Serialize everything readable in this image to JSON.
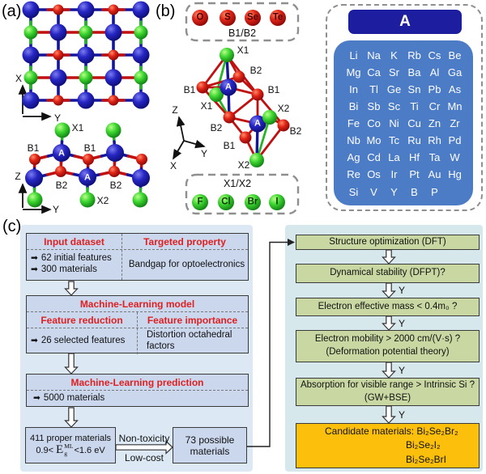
{
  "panels": {
    "a": "(a)",
    "b": "(b)",
    "c": "(c)"
  },
  "axes": {
    "x": "X",
    "y": "Y",
    "z": "Z"
  },
  "site_labels": {
    "a": "A",
    "b1": "B1",
    "b2": "B2",
    "x1": "X1",
    "x2": "X2"
  },
  "panel_b": {
    "b_site_box": {
      "caption": "B1/B2",
      "elements": [
        "O",
        "S",
        "Se",
        "Te"
      ]
    },
    "x_site_box": {
      "caption": "X1/X2",
      "elements": [
        "F",
        "Cl",
        "Br",
        "I"
      ]
    }
  },
  "a_site_box": {
    "header": "A",
    "rows": [
      [
        "Li",
        "Na",
        "K",
        "Rb",
        "Cs",
        "Be"
      ],
      [
        "Mg",
        "Ca",
        "Sr",
        "Ba",
        "Al",
        "Ga"
      ],
      [
        "In",
        "Tl",
        "Ge",
        "Sn",
        "Pb",
        "As"
      ],
      [
        "Bi",
        "Sb",
        "Sc",
        "Ti",
        "Cr",
        "Mn"
      ],
      [
        "Fe",
        "Co",
        "Ni",
        "Cu",
        "Zn",
        "Zr"
      ],
      [
        "Nb",
        "Mo",
        "Tc",
        "Ru",
        "Rh",
        "Pd"
      ],
      [
        "Ag",
        "Cd",
        "La",
        "Hf",
        "Ta",
        "W"
      ],
      [
        "Re",
        "Os",
        "Ir",
        "Pt",
        "Au",
        "Hg"
      ],
      [
        "Si",
        "V",
        "Y",
        "B",
        "P",
        ""
      ]
    ]
  },
  "flowchart": {
    "bullet_icon": "➡",
    "input_box": {
      "header_left": "Input dataset",
      "header_right": "Targeted property",
      "items": [
        "62 initial features",
        "300 materials"
      ],
      "body_right": "Bandgap for optoelectronics"
    },
    "model_box": {
      "title": "Machine-Learning model",
      "sub_left": "Feature reduction",
      "sub_right": "Feature importance",
      "item": "26 selected features",
      "body_right": "Distortion octahedral factors"
    },
    "prediction_box": {
      "title": "Machine-Learning prediction",
      "item": "5000 materials"
    },
    "proper_box": {
      "line1": "411 proper materials",
      "formula": {
        "prefix": "0.9<",
        "symbol": "E",
        "sup": "ML",
        "sub": "g",
        "suffix": "<1.6 eV"
      }
    },
    "transfer": {
      "top": "Non-toxicity",
      "bottom": "Low-cost"
    },
    "possible_box": {
      "text": "73 possible materials"
    },
    "yes_label": "Y",
    "steps": [
      {
        "line1": "Structure optimization (DFT)"
      },
      {
        "line1": "Dynamical stability (DFPT)?"
      },
      {
        "line1": "Electron effective mass < 0.4m₀ ?"
      },
      {
        "line1": "Electron mobility > 2000 cm/(V·s) ?",
        "line2": "(Deformation potential theory)"
      },
      {
        "line1": "Absorption for visible range > Intrinsic Si ?",
        "line2": "(GW+BSE)"
      }
    ],
    "candidate_box": {
      "line1": "Candidate materials: Bi₂Se₂Br₂",
      "line2": "Bi₂Se₂I₂",
      "line3": "Bi₂Se₂BrI"
    }
  },
  "colors": {
    "red_text": "#e02020",
    "left_flow_box": "#cad7ed",
    "right_flow_box": "#c9d8a2",
    "candidate_box": "#fcc00c",
    "a_header": "#1d1d9f",
    "a_panel": "#4d7cc7",
    "bg_left": "#dce9f4",
    "bg_right": "#d7e8ec",
    "atom_blue": "#1d1daa",
    "atom_green": "#2fc32f",
    "atom_red": "#cc1212"
  }
}
